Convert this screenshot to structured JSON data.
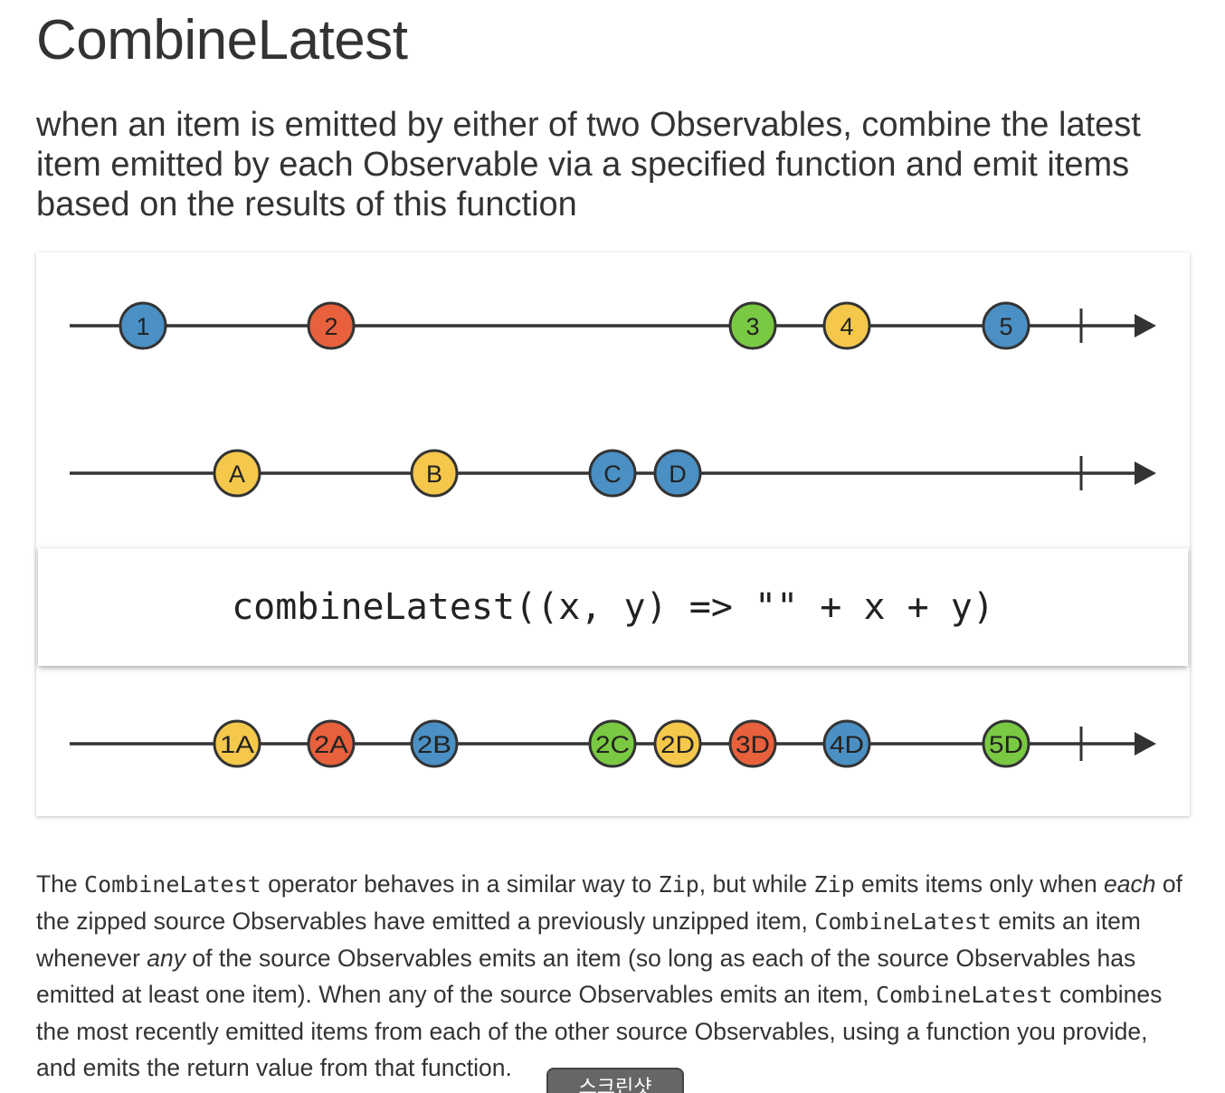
{
  "title": "CombineLatest",
  "subtitle": "when an item is emitted by either of two Observables, combine the latest item emitted by each Observable via a specified function and emit items based on the results of this function",
  "diagram": {
    "operator_label": "combineLatest((x, y) => \"\" + x + y)",
    "colors": {
      "blue": "#4a90c4",
      "red": "#e8603c",
      "green": "#7ac943",
      "yellow": "#f5c84c",
      "line": "#333333"
    },
    "streams": [
      {
        "name": "source-1",
        "marbles": [
          {
            "label": "1",
            "color": "blue"
          },
          {
            "label": "2",
            "color": "red"
          },
          {
            "label": "3",
            "color": "green"
          },
          {
            "label": "4",
            "color": "yellow"
          },
          {
            "label": "5",
            "color": "blue"
          }
        ]
      },
      {
        "name": "source-2",
        "marbles": [
          {
            "label": "A",
            "color": "yellow"
          },
          {
            "label": "B",
            "color": "yellow"
          },
          {
            "label": "C",
            "color": "blue"
          },
          {
            "label": "D",
            "color": "blue"
          }
        ]
      },
      {
        "name": "result",
        "marbles": [
          {
            "label": "1A",
            "color": "yellow"
          },
          {
            "label": "2A",
            "color": "red"
          },
          {
            "label": "2B",
            "color": "blue"
          },
          {
            "label": "2C",
            "color": "green"
          },
          {
            "label": "2D",
            "color": "yellow"
          },
          {
            "label": "3D",
            "color": "red"
          },
          {
            "label": "4D",
            "color": "blue"
          },
          {
            "label": "5D",
            "color": "green"
          }
        ]
      }
    ]
  },
  "description": {
    "t1": "The ",
    "c1": "CombineLatest",
    "t2": " operator behaves in a similar way to ",
    "c2": "Zip",
    "t3": ", but while ",
    "c3": "Zip",
    "t4": " emits items only when ",
    "e1": "each",
    "t5": " of the zipped source Observables have emitted a previously unzipped item, ",
    "c4": "CombineLatest",
    "t6": " emits an item whenever ",
    "e2": "any",
    "t7": " of the source Observables emits an item (so long as each of the source Observables has emitted at least one item). When any of the source Observables emits an item, ",
    "c5": "CombineLatest",
    "t8": " combines the most recently emitted items from each of the other source Observables, using a function you provide, and emits the return value from that function."
  },
  "floating_tab_label": "스크린샷"
}
